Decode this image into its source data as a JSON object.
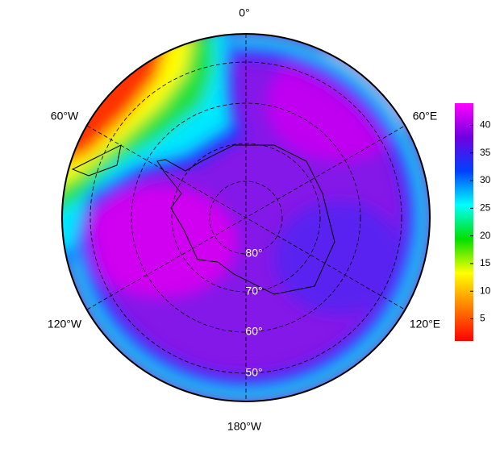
{
  "map": {
    "longitude_labels": [
      "0°",
      "60°W",
      "60°E",
      "120°W",
      "120°E",
      "180°W"
    ],
    "latitude_labels": [
      "80°",
      "70°",
      "60°",
      "50°"
    ],
    "colorbar": {
      "lim": [
        1,
        44
      ],
      "ticks": [
        5,
        10,
        15,
        20,
        25,
        30,
        35,
        40
      ],
      "colors": [
        "#ff0000",
        "#ff8000",
        "#ffff00",
        "#00e000",
        "#00ffff",
        "#0040ff",
        "#7000e0",
        "#ff00ff"
      ]
    }
  }
}
